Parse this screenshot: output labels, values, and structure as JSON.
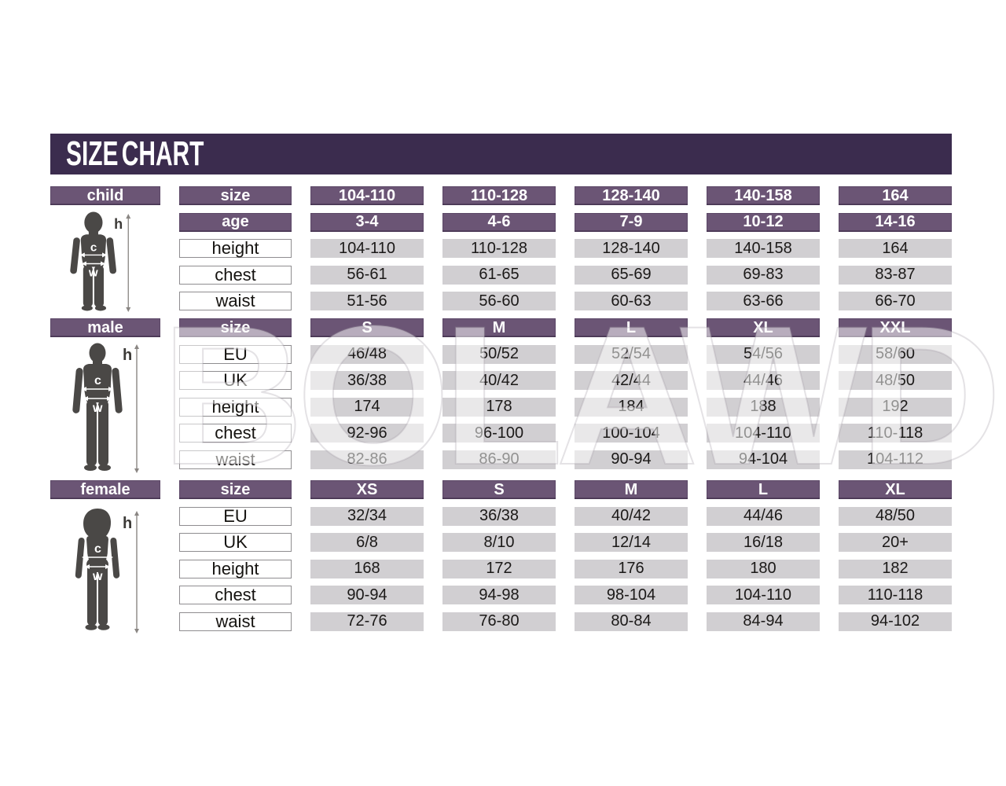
{
  "title": "SIZE CHART",
  "watermark": "BOLAWD",
  "colors": {
    "banner": "#3b2c4e",
    "header_bar": "#6b5575",
    "data_cell": "#d1cfd2",
    "silhouette": "#4a4846"
  },
  "figure_labels": {
    "h": "h",
    "c": "c",
    "w": "w"
  },
  "chart_data": [
    {
      "type": "table",
      "section": "child",
      "rows": [
        {
          "label": "size",
          "style": "header",
          "values": [
            "104-110",
            "110-128",
            "128-140",
            "140-158",
            "164"
          ]
        },
        {
          "label": "age",
          "style": "header",
          "values": [
            "3-4",
            "4-6",
            "7-9",
            "10-12",
            "14-16"
          ]
        },
        {
          "label": "height",
          "style": "data",
          "values": [
            "104-110",
            "110-128",
            "128-140",
            "140-158",
            "164"
          ]
        },
        {
          "label": "chest",
          "style": "data",
          "values": [
            "56-61",
            "61-65",
            "65-69",
            "69-83",
            "83-87"
          ]
        },
        {
          "label": "waist",
          "style": "data",
          "values": [
            "51-56",
            "56-60",
            "60-63",
            "63-66",
            "66-70"
          ]
        }
      ]
    },
    {
      "type": "table",
      "section": "male",
      "rows": [
        {
          "label": "size",
          "style": "header",
          "values": [
            "S",
            "M",
            "L",
            "XL",
            "XXL"
          ]
        },
        {
          "label": "EU",
          "style": "data",
          "values": [
            "46/48",
            "50/52",
            "52/54",
            "54/56",
            "58/60"
          ]
        },
        {
          "label": "UK",
          "style": "data",
          "values": [
            "36/38",
            "40/42",
            "42/44",
            "44/46",
            "48/50"
          ]
        },
        {
          "label": "height",
          "style": "data",
          "values": [
            "174",
            "178",
            "184",
            "188",
            "192"
          ]
        },
        {
          "label": "chest",
          "style": "data",
          "values": [
            "92-96",
            "96-100",
            "100-104",
            "104-110",
            "110-118"
          ]
        },
        {
          "label": "waist",
          "style": "data",
          "values": [
            "82-86",
            "86-90",
            "90-94",
            "94-104",
            "104-112"
          ]
        }
      ]
    },
    {
      "type": "table",
      "section": "female",
      "rows": [
        {
          "label": "size",
          "style": "header",
          "values": [
            "XS",
            "S",
            "M",
            "L",
            "XL"
          ]
        },
        {
          "label": "EU",
          "style": "data",
          "values": [
            "32/34",
            "36/38",
            "40/42",
            "44/46",
            "48/50"
          ]
        },
        {
          "label": "UK",
          "style": "data",
          "values": [
            "6/8",
            "8/10",
            "12/14",
            "16/18",
            "20+"
          ]
        },
        {
          "label": "height",
          "style": "data",
          "values": [
            "168",
            "172",
            "176",
            "180",
            "182"
          ]
        },
        {
          "label": "chest",
          "style": "data",
          "values": [
            "90-94",
            "94-98",
            "98-104",
            "104-110",
            "110-118"
          ]
        },
        {
          "label": "waist",
          "style": "data",
          "values": [
            "72-76",
            "76-80",
            "80-84",
            "84-94",
            "94-102"
          ]
        }
      ]
    }
  ]
}
